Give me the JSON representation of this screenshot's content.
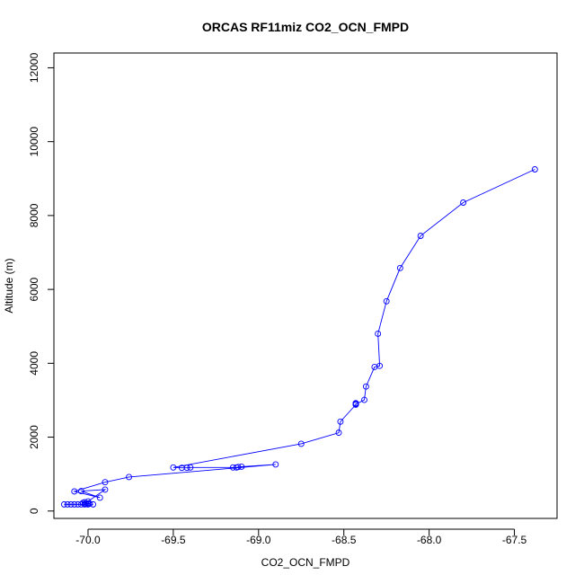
{
  "chart_data": {
    "type": "line",
    "title": "ORCAS RF11miz CO2_OCN_FMPD",
    "xlabel": "CO2_OCN_FMPD",
    "ylabel": "Altitude (m)",
    "xlim": [
      -70.2,
      -67.25
    ],
    "ylim": [
      -200,
      12400
    ],
    "x_ticks": [
      -70.0,
      -69.5,
      -69.0,
      -68.5,
      -68.0,
      -67.5
    ],
    "x_tick_labels": [
      "-70.0",
      "-69.5",
      "-69.0",
      "-68.5",
      "-68.0",
      "-67.5"
    ],
    "y_ticks": [
      0,
      2000,
      4000,
      6000,
      8000,
      10000,
      12000
    ],
    "y_tick_labels": [
      "0",
      "2000",
      "4000",
      "6000",
      "8000",
      "10000",
      "12000"
    ],
    "grid": false,
    "legend": "none",
    "marker": "open-circle",
    "color": "#0000ff",
    "series": [
      {
        "x": [
          -67.38,
          -67.8,
          -68.05,
          -68.17,
          -68.25,
          -68.3,
          -68.29,
          -68.32,
          -68.37,
          -68.38,
          -68.43,
          -68.43,
          -68.43,
          -68.43,
          -68.52,
          -68.53,
          -68.75,
          -69.5,
          -69.45,
          -69.42,
          -69.4,
          -69.15,
          -69.13,
          -69.12,
          -69.1,
          -68.9,
          -69.76,
          -69.9,
          -70.08,
          -69.93,
          -70.04,
          -69.9,
          -70.0,
          -70.02,
          -70.03,
          -70.0,
          -69.99,
          -70.02,
          -70.04,
          -70.06,
          -70.08,
          -70.1,
          -70.12,
          -70.14,
          -70.0,
          -70.02,
          -70.01,
          -69.97
        ],
        "y": [
          9250,
          8350,
          7450,
          6580,
          5680,
          4800,
          3930,
          3900,
          3370,
          3010,
          2890,
          2900,
          2920,
          2880,
          2420,
          2120,
          1820,
          1180,
          1170,
          1170,
          1180,
          1180,
          1180,
          1190,
          1200,
          1260,
          920,
          780,
          530,
          360,
          540,
          580,
          260,
          240,
          220,
          210,
          200,
          190,
          180,
          180,
          180,
          180,
          180,
          180,
          180,
          180,
          190,
          180
        ]
      }
    ]
  }
}
